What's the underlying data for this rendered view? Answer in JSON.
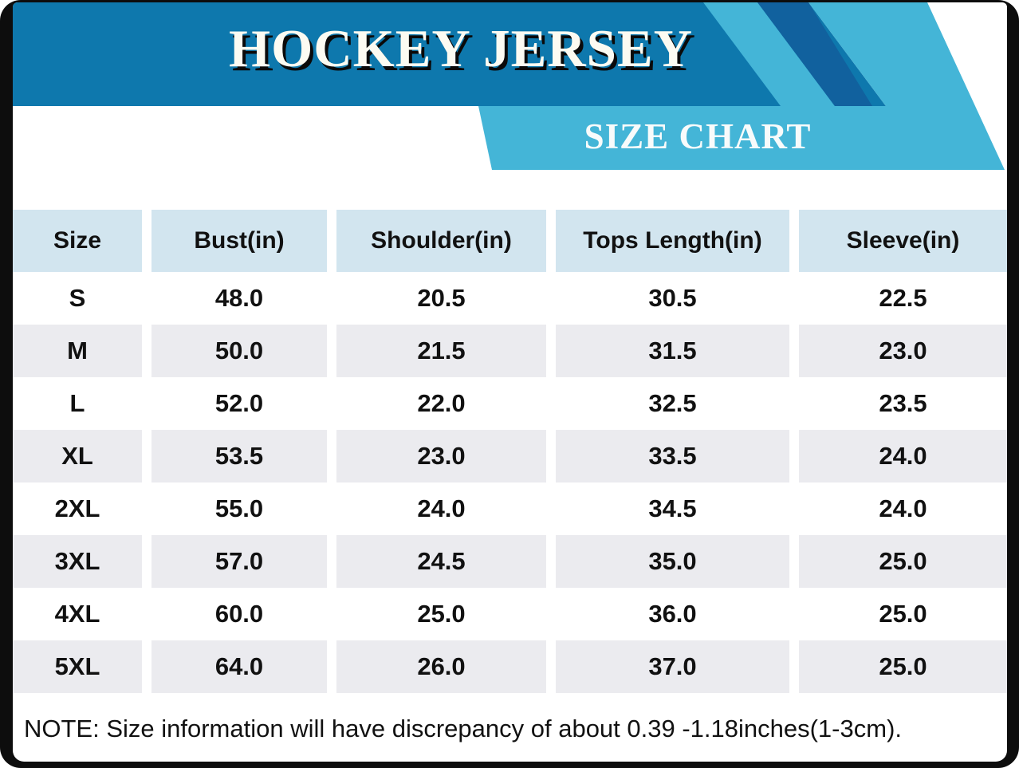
{
  "header": {
    "title": "HOCKEY JERSEY",
    "subtitle": "SIZE CHART"
  },
  "chart_data": {
    "type": "table",
    "title": "HOCKEY JERSEY",
    "subtitle": "SIZE CHART",
    "columns": [
      "Size",
      "Bust(in)",
      "Shoulder(in)",
      "Tops Length(in)",
      "Sleeve(in)"
    ],
    "rows": [
      [
        "S",
        "48.0",
        "20.5",
        "30.5",
        "22.5"
      ],
      [
        "M",
        "50.0",
        "21.5",
        "31.5",
        "23.0"
      ],
      [
        "L",
        "52.0",
        "22.0",
        "32.5",
        "23.5"
      ],
      [
        "XL",
        "53.5",
        "23.0",
        "33.5",
        "24.0"
      ],
      [
        "2XL",
        "55.0",
        "24.0",
        "34.5",
        "24.0"
      ],
      [
        "3XL",
        "57.0",
        "24.5",
        "35.0",
        "25.0"
      ],
      [
        "4XL",
        "60.0",
        "25.0",
        "36.0",
        "25.0"
      ],
      [
        "5XL",
        "64.0",
        "26.0",
        "37.0",
        "25.0"
      ]
    ],
    "units": "inches"
  },
  "note": "NOTE: Size information will have discrepancy of about 0.39 -1.18inches(1-3cm).",
  "colors": {
    "banner_blue": "#0e78ad",
    "banner_dark_blue": "#11619e",
    "band_light_blue": "#44b5d7",
    "table_header_bg": "#d2e5ef",
    "table_alt_row_bg": "#ebebef",
    "frame_black": "#0d0d0d",
    "text_black": "#111111",
    "title_white": "#fcfbf2"
  }
}
